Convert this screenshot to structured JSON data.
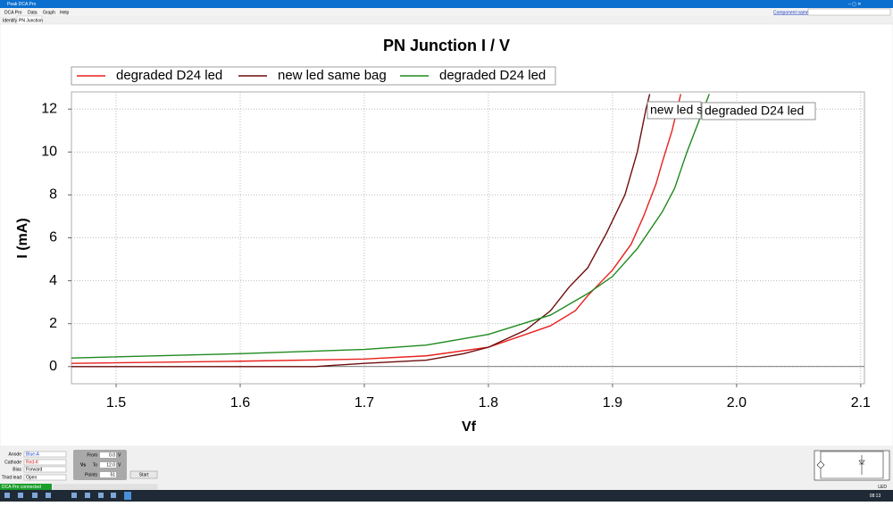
{
  "window": {
    "title": "Peak DCA Pro",
    "menu": [
      "DCA Pro",
      "Data",
      "Graph",
      "Help"
    ],
    "tabs": [
      "Identify",
      "PN Junction"
    ],
    "component_link": "Component name"
  },
  "chart_data": {
    "type": "line",
    "title": "PN Junction I / V",
    "xlabel": "Vf",
    "ylabel": "I (mA)",
    "xlim": [
      1.464,
      2.103
    ],
    "ylim": [
      -0.8,
      12.8
    ],
    "xticks": [
      1.5,
      1.6,
      1.7,
      1.8,
      1.9,
      {
        "value": 2,
        "label": "2.0"
      },
      2.1
    ],
    "yticks": [
      0,
      2,
      4,
      6,
      8,
      10,
      12
    ],
    "grid": true,
    "series": [
      {
        "name": "degraded D24 led",
        "color": "#e8201c",
        "x": [
          1.464,
          1.6,
          1.7,
          1.75,
          1.8,
          1.85,
          1.87,
          1.88,
          1.9,
          1.915,
          1.925,
          1.935,
          1.94,
          1.948,
          1.955
        ],
        "values": [
          0.15,
          0.25,
          0.35,
          0.5,
          0.9,
          1.9,
          2.6,
          3.3,
          4.5,
          5.7,
          7,
          8.5,
          9.5,
          11,
          12.7
        ]
      },
      {
        "name": "new led same bag",
        "color": "#6e0d0d",
        "x": [
          1.464,
          1.66,
          1.7,
          1.75,
          1.78,
          1.8,
          1.83,
          1.85,
          1.865,
          1.88,
          1.895,
          1.91,
          1.92,
          1.927,
          1.93
        ],
        "values": [
          0,
          0,
          0.15,
          0.3,
          0.6,
          0.9,
          1.7,
          2.6,
          3.7,
          4.6,
          6.2,
          8,
          10,
          12,
          12.7
        ]
      },
      {
        "name": "degraded D24 led",
        "color": "#1f8a1f",
        "x": [
          1.464,
          1.6,
          1.7,
          1.75,
          1.8,
          1.85,
          1.88,
          1.9,
          1.92,
          1.94,
          1.95,
          1.96,
          1.97,
          1.978
        ],
        "values": [
          0.4,
          0.6,
          0.8,
          1.0,
          1.5,
          2.4,
          3.4,
          4.2,
          5.5,
          7.2,
          8.3,
          10,
          11.5,
          12.7
        ]
      }
    ],
    "annotations": [
      "new led s",
      "degraded D24 led"
    ]
  },
  "controls": {
    "anode_label": "Anode",
    "anode": "Blue-A",
    "cathode_label": "Cathode",
    "cathode": "Red-K",
    "bias_label": "Bias",
    "bias": "Forward",
    "third_label": "Third lead",
    "third": "Open",
    "vs": "Vs",
    "from_label": "From",
    "from": "0.0",
    "to_label": "To",
    "to": "12.0",
    "points_label": "Points",
    "points": "51",
    "unit": "V",
    "start": "Start"
  },
  "status": {
    "text": "DCA Pro connected",
    "right": "LED"
  },
  "taskbar": {
    "time": "08:13"
  }
}
